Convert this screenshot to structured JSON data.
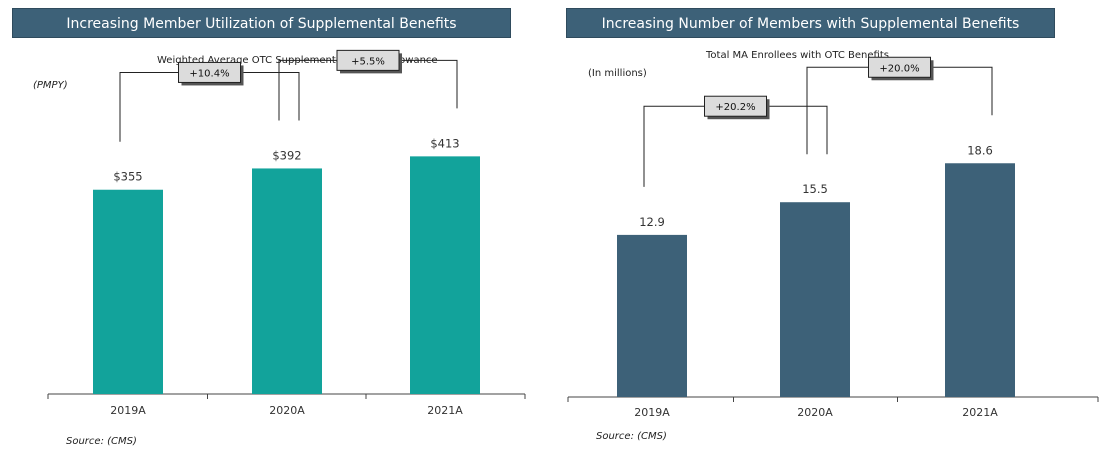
{
  "chart_data": [
    {
      "type": "bar",
      "banner": "Increasing Member Utilization of Supplemental Benefits",
      "title": "Weighted Average OTC Supplemental Benefit Allowance",
      "unit_label": "(PMPY)",
      "categories": [
        "2019A",
        "2020A",
        "2021A"
      ],
      "values": [
        355,
        392,
        413
      ],
      "value_labels": [
        "$355",
        "$392",
        "$413"
      ],
      "changes": [
        "+10.4%",
        "+5.5%"
      ],
      "ylim": [
        0,
        650
      ],
      "grid": false,
      "bar_color": "#12a39b",
      "source": "Source: (CMS)"
    },
    {
      "type": "bar",
      "banner": "Increasing Number of Members with Supplemental Benefits",
      "title": "Total MA Enrollees with OTC Benefits",
      "unit_label": "(In millions)",
      "categories": [
        "2019A",
        "2020A",
        "2021A"
      ],
      "values": [
        12.9,
        15.5,
        18.6
      ],
      "value_labels": [
        "12.9",
        "15.5",
        "18.6"
      ],
      "changes": [
        "+20.2%",
        "+20.0%"
      ],
      "ylim": [
        0,
        30
      ],
      "grid": false,
      "bar_color": "#3d6178",
      "source": "Source: (CMS)"
    }
  ]
}
